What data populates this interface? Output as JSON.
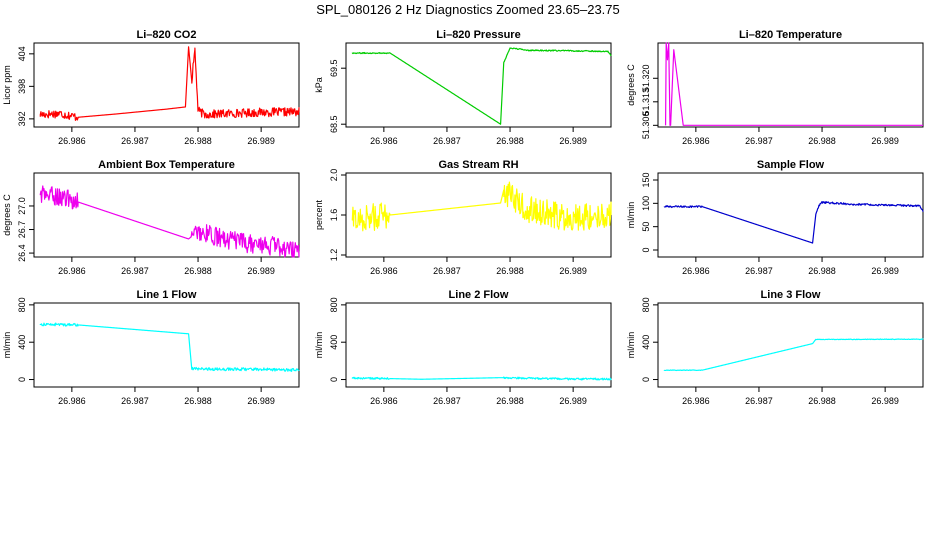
{
  "page": {
    "title": "SPL_080126  2 Hz Diagnostics Zoomed 23.65–23.75"
  },
  "chart_data": [
    {
      "type": "line",
      "title": "Li–820 CO2",
      "ylabel": "Licor ppm",
      "color": "#ff0000",
      "xlim": [
        26.9854,
        26.9896
      ],
      "ylim": [
        390.5,
        406
      ],
      "xticks": [
        26.986,
        26.987,
        26.988,
        26.989
      ],
      "xtick_labels": [
        "26.986",
        "26.987",
        "26.988",
        "26.989"
      ],
      "yticks": [
        392,
        398,
        404
      ],
      "ytick_labels": [
        "392",
        "398",
        "404"
      ],
      "noise": 0.8,
      "x": [
        26.9855,
        26.9858,
        26.9861,
        26.9867,
        26.9875,
        26.9878,
        26.98785,
        26.9879,
        26.98795,
        26.988,
        26.9881,
        26.9885,
        26.989,
        26.9896
      ],
      "y": [
        392.8,
        393.0,
        392.3,
        392.9,
        393.8,
        394.2,
        405.3,
        399.0,
        404.8,
        393.5,
        392.8,
        393.0,
        393.2,
        393.3
      ]
    },
    {
      "type": "line",
      "title": "Li–820 Pressure",
      "ylabel": "kPa",
      "color": "#00cc00",
      "xlim": [
        26.9854,
        26.9896
      ],
      "ylim": [
        68.45,
        69.95
      ],
      "xticks": [
        26.986,
        26.987,
        26.988,
        26.989
      ],
      "xtick_labels": [
        "26.986",
        "26.987",
        "26.988",
        "26.989"
      ],
      "yticks": [
        68.5,
        69.5
      ],
      "ytick_labels": [
        "68.5",
        "69.5"
      ],
      "noise": 0.01,
      "x": [
        26.9855,
        26.9861,
        26.98785,
        26.9879,
        26.988,
        26.9883,
        26.989,
        26.98955,
        26.9896
      ],
      "y": [
        69.77,
        69.77,
        68.5,
        69.6,
        69.86,
        69.82,
        69.81,
        69.8,
        69.72
      ]
    },
    {
      "type": "line",
      "title": "Li–820 Temperature",
      "ylabel": "degrees C",
      "color": "#ee00ee",
      "xlim": [
        26.9854,
        26.9896
      ],
      "ylim": [
        51.3055,
        51.3305
      ],
      "xticks": [
        26.986,
        26.987,
        26.988,
        26.989
      ],
      "xtick_labels": [
        "26.986",
        "26.987",
        "26.988",
        "26.989"
      ],
      "yticks": [
        51.306,
        51.313,
        51.32
      ],
      "ytick_labels": [
        "51.306",
        "51.313",
        "51.320"
      ],
      "noise": 0,
      "x": [
        26.98552,
        26.98553,
        26.98555,
        26.98557,
        26.98559,
        26.9856,
        26.98565,
        26.9858,
        26.9896
      ],
      "y": [
        51.306,
        51.3305,
        51.3255,
        51.3305,
        51.306,
        51.306,
        51.3285,
        51.306,
        51.306
      ]
    },
    {
      "type": "line",
      "title": "Ambient Box Temperature",
      "ylabel": "degrees C",
      "color": "#ee00ee",
      "xlim": [
        26.9854,
        26.9896
      ],
      "ylim": [
        26.35,
        27.42
      ],
      "xticks": [
        26.986,
        26.987,
        26.988,
        26.989
      ],
      "xtick_labels": [
        "26.986",
        "26.987",
        "26.988",
        "26.989"
      ],
      "yticks": [
        26.4,
        26.7,
        27.0
      ],
      "ytick_labels": [
        "26.4",
        "26.7",
        "27.0"
      ],
      "noise": 0.12,
      "x": [
        26.9855,
        26.9858,
        26.9861,
        26.98785,
        26.988,
        26.9884,
        26.9888,
        26.9893,
        26.9896
      ],
      "y": [
        27.15,
        27.12,
        27.05,
        26.58,
        26.68,
        26.58,
        26.52,
        26.48,
        26.42
      ]
    },
    {
      "type": "line",
      "title": "Gas Stream RH",
      "ylabel": "percent",
      "color": "#ffff00",
      "xlim": [
        26.9854,
        26.9896
      ],
      "ylim": [
        1.18,
        2.02
      ],
      "xticks": [
        26.986,
        26.987,
        26.988,
        26.989
      ],
      "xtick_labels": [
        "26.986",
        "26.987",
        "26.988",
        "26.989"
      ],
      "yticks": [
        1.2,
        1.6,
        2.0
      ],
      "ytick_labels": [
        "1.2",
        "1.6",
        "2.0"
      ],
      "noise": 0.14,
      "x": [
        26.9855,
        26.9858,
        26.9861,
        26.98785,
        26.9879,
        26.9882,
        26.9888,
        26.9896
      ],
      "y": [
        1.55,
        1.58,
        1.6,
        1.72,
        1.85,
        1.68,
        1.58,
        1.6
      ]
    },
    {
      "type": "line",
      "title": "Sample Flow",
      "ylabel": "ml/min",
      "color": "#0000cc",
      "xlim": [
        26.9854,
        26.9896
      ],
      "ylim": [
        -15,
        165
      ],
      "xticks": [
        26.986,
        26.987,
        26.988,
        26.989
      ],
      "xtick_labels": [
        "26.986",
        "26.987",
        "26.988",
        "26.989"
      ],
      "yticks": [
        0,
        50,
        100,
        150
      ],
      "ytick_labels": [
        "0",
        "50",
        "100",
        "150"
      ],
      "noise": 2,
      "x": [
        26.9855,
        26.9861,
        26.98785,
        26.9879,
        26.98795,
        26.988,
        26.9885,
        26.989,
        26.98955,
        26.9896
      ],
      "y": [
        93,
        93,
        15,
        75,
        95,
        102,
        98,
        96,
        95,
        82
      ]
    },
    {
      "type": "line",
      "title": "Line 1 Flow",
      "ylabel": "ml/min",
      "color": "#00ffff",
      "xlim": [
        26.9854,
        26.9896
      ],
      "ylim": [
        -80,
        820
      ],
      "xticks": [
        26.986,
        26.987,
        26.988,
        26.989
      ],
      "xtick_labels": [
        "26.986",
        "26.987",
        "26.988",
        "26.989"
      ],
      "yticks": [
        0,
        400,
        800
      ],
      "ytick_labels": [
        "0",
        "400",
        "800"
      ],
      "noise": 15,
      "x": [
        26.9855,
        26.9858,
        26.9861,
        26.98785,
        26.9879,
        26.9885,
        26.989,
        26.9896
      ],
      "y": [
        590,
        590,
        585,
        490,
        115,
        110,
        110,
        100
      ]
    },
    {
      "type": "line",
      "title": "Line 2 Flow",
      "ylabel": "ml/min",
      "color": "#00ffff",
      "xlim": [
        26.9854,
        26.9896
      ],
      "ylim": [
        -80,
        820
      ],
      "xticks": [
        26.986,
        26.987,
        26.988,
        26.989
      ],
      "xtick_labels": [
        "26.986",
        "26.987",
        "26.988",
        "26.989"
      ],
      "yticks": [
        0,
        400,
        800
      ],
      "ytick_labels": [
        "0",
        "400",
        "800"
      ],
      "noise": 10,
      "x": [
        26.9855,
        26.9861,
        26.9866,
        26.98785,
        26.9885,
        26.989,
        26.9896
      ],
      "y": [
        15,
        10,
        3,
        20,
        10,
        5,
        5
      ]
    },
    {
      "type": "line",
      "title": "Line 3 Flow",
      "ylabel": "ml/min",
      "color": "#00ffff",
      "xlim": [
        26.9854,
        26.9896
      ],
      "ylim": [
        -80,
        820
      ],
      "xticks": [
        26.986,
        26.987,
        26.988,
        26.989
      ],
      "xtick_labels": [
        "26.986",
        "26.987",
        "26.988",
        "26.989"
      ],
      "yticks": [
        0,
        400,
        800
      ],
      "ytick_labels": [
        "0",
        "400",
        "800"
      ],
      "noise": 3,
      "x": [
        26.9855,
        26.9861,
        26.98785,
        26.9879,
        26.9885,
        26.989,
        26.9896
      ],
      "y": [
        100,
        100,
        385,
        430,
        430,
        432,
        432
      ]
    }
  ]
}
